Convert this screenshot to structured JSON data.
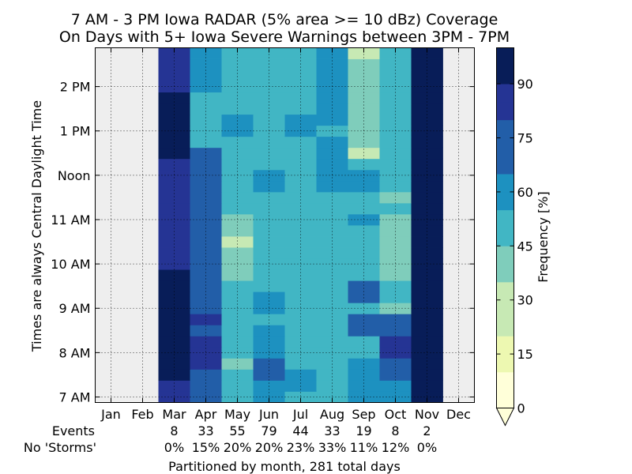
{
  "chart_data": {
    "type": "heatmap",
    "title": "7 AM - 3 PM Iowa RADAR (5% area >= 10 dBz) Coverage",
    "subtitle": "On Days with 5+ Iowa Severe Warnings between 3PM - 7PM",
    "ylabel": "Times are always Central Daylight Time",
    "xlabel": "Partitioned by month, 281 total days",
    "colorbar_label": "Frequency [%]",
    "colorbar_ticks": [
      "0",
      "15",
      "30",
      "45",
      "60",
      "75",
      "90"
    ],
    "colorbar_range": [
      0,
      100
    ],
    "x_categories": [
      "Jan",
      "Feb",
      "Mar",
      "Apr",
      "May",
      "Jun",
      "Jul",
      "Aug",
      "Sep",
      "Oct",
      "Nov",
      "Dec"
    ],
    "events_label": "Events",
    "events": [
      "",
      "",
      "8",
      "33",
      "55",
      "79",
      "44",
      "33",
      "19",
      "8",
      "2",
      ""
    ],
    "no_storms_label": "No 'Storms'",
    "no_storms": [
      "",
      "",
      "0%",
      "15%",
      "20%",
      "20%",
      "23%",
      "33%",
      "11%",
      "12%",
      "0%",
      ""
    ],
    "y_tick_labels": [
      "7 AM",
      "8 AM",
      "9 AM",
      "10 AM",
      "11 AM",
      "Noon",
      "1 PM",
      "2 PM"
    ],
    "y_tick_hours": [
      7,
      8,
      9,
      10,
      11,
      12,
      13,
      14
    ],
    "y_range_hours": [
      6.875,
      14.875
    ],
    "missing_color": "#eeeeee",
    "colors": [
      "#ffffd9",
      "#edf8b1",
      "#c7e9b4",
      "#7fcdbb",
      "#41b6c4",
      "#1d91c0",
      "#225ea8",
      "#253494",
      "#081d58"
    ],
    "values": [
      [
        null,
        null,
        87,
        75,
        52,
        65,
        55,
        48,
        65,
        60,
        100,
        null
      ],
      [
        null,
        null,
        87,
        75,
        52,
        65,
        62,
        48,
        65,
        60,
        100,
        null
      ],
      [
        null,
        null,
        100,
        75,
        49,
        68,
        62,
        48,
        65,
        68,
        100,
        null
      ],
      [
        null,
        null,
        100,
        80,
        42,
        68,
        55,
        48,
        65,
        68,
        100,
        null
      ],
      [
        null,
        null,
        100,
        80,
        49,
        64,
        55,
        52,
        52,
        80,
        100,
        null
      ],
      [
        null,
        null,
        100,
        80,
        49,
        64,
        55,
        52,
        52,
        80,
        100,
        null
      ],
      [
        null,
        null,
        100,
        72,
        49,
        59,
        52,
        52,
        72,
        68,
        100,
        null
      ],
      [
        null,
        null,
        100,
        82,
        49,
        52,
        52,
        55,
        75,
        68,
        100,
        null
      ],
      [
        null,
        null,
        100,
        72,
        49,
        56,
        49,
        52,
        52,
        40,
        100,
        null
      ],
      [
        null,
        null,
        100,
        72,
        49,
        56,
        49,
        52,
        69,
        55,
        100,
        null
      ],
      [
        null,
        null,
        100,
        69,
        49,
        48,
        49,
        52,
        69,
        55,
        100,
        null
      ],
      [
        null,
        null,
        100,
        69,
        44,
        48,
        49,
        48,
        49,
        40,
        100,
        null
      ],
      [
        null,
        null,
        88,
        69,
        34,
        48,
        49,
        48,
        49,
        40,
        100,
        null
      ],
      [
        null,
        null,
        88,
        69,
        40,
        48,
        49,
        48,
        49,
        40,
        100,
        null
      ],
      [
        null,
        null,
        88,
        69,
        33,
        52,
        49,
        48,
        49,
        40,
        100,
        null
      ],
      [
        null,
        null,
        88,
        69,
        44,
        52,
        52,
        48,
        49,
        40,
        100,
        null
      ],
      [
        null,
        null,
        88,
        69,
        44,
        52,
        52,
        48,
        58,
        40,
        100,
        null
      ],
      [
        null,
        null,
        88,
        69,
        47,
        52,
        52,
        48,
        52,
        55,
        100,
        null
      ],
      [
        null,
        null,
        88,
        69,
        47,
        52,
        52,
        48,
        52,
        36,
        100,
        null
      ],
      [
        null,
        null,
        88,
        69,
        52,
        58,
        45,
        58,
        62,
        52,
        100,
        null
      ],
      [
        null,
        null,
        88,
        69,
        52,
        58,
        50,
        58,
        62,
        52,
        100,
        null
      ],
      [
        null,
        null,
        88,
        69,
        52,
        52,
        50,
        58,
        52,
        52,
        100,
        null
      ],
      [
        null,
        null,
        100,
        69,
        49,
        52,
        50,
        58,
        32,
        52,
        100,
        null
      ],
      [
        null,
        null,
        100,
        52,
        49,
        52,
        50,
        60,
        44,
        52,
        100,
        null
      ],
      [
        null,
        null,
        100,
        52,
        62,
        52,
        62,
        52,
        40,
        52,
        100,
        null
      ],
      [
        null,
        null,
        100,
        52,
        62,
        52,
        62,
        65,
        40,
        52,
        100,
        null
      ],
      [
        null,
        null,
        100,
        52,
        52,
        52,
        52,
        60,
        40,
        52,
        100,
        null
      ],
      [
        null,
        null,
        100,
        52,
        52,
        52,
        52,
        60,
        40,
        52,
        100,
        null
      ],
      [
        null,
        null,
        87,
        60,
        52,
        52,
        52,
        60,
        40,
        52,
        100,
        null
      ],
      [
        null,
        null,
        87,
        60,
        52,
        52,
        52,
        62,
        40,
        52,
        100,
        null
      ],
      [
        null,
        null,
        87,
        60,
        52,
        52,
        52,
        62,
        40,
        52,
        100,
        null
      ],
      [
        null,
        null,
        87,
        60,
        52,
        52,
        52,
        62,
        32,
        52,
        100,
        null
      ]
    ]
  }
}
